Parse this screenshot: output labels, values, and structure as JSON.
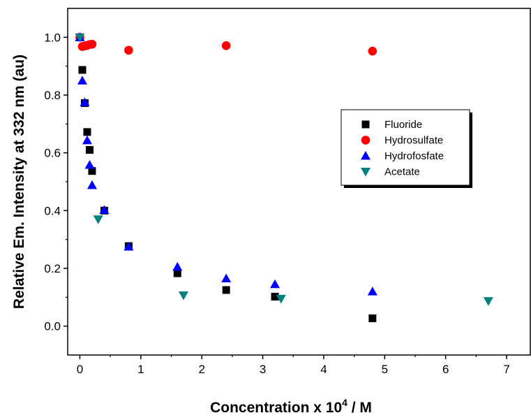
{
  "chart_data": {
    "type": "scatter",
    "xlabel": "Concentration x 10",
    "xlabel_sup": "4",
    "xlabel_suffix": " / M",
    "ylabel": "Relative Em. Intensity at 332 nm (au)",
    "xlim": [
      -0.2,
      7.4
    ],
    "ylim": [
      -0.1,
      1.1
    ],
    "x_ticks": [
      0,
      1,
      2,
      3,
      4,
      5,
      6,
      7
    ],
    "y_ticks": [
      0.0,
      0.2,
      0.4,
      0.6,
      0.8,
      1.0
    ],
    "y_tick_labels": [
      "0.0",
      "0.2",
      "0.4",
      "0.6",
      "0.8",
      "1.0"
    ],
    "grid": false,
    "legend_position": "right",
    "series": [
      {
        "name": "Fluoride",
        "marker": "square",
        "color": "#000000",
        "points": [
          [
            0,
            1.0
          ],
          [
            0.04,
            0.887
          ],
          [
            0.08,
            0.772
          ],
          [
            0.12,
            0.672
          ],
          [
            0.16,
            0.61
          ],
          [
            0.2,
            0.537
          ],
          [
            0.4,
            0.4
          ],
          [
            0.8,
            0.277
          ],
          [
            1.6,
            0.183
          ],
          [
            2.4,
            0.125
          ],
          [
            3.2,
            0.102
          ],
          [
            4.8,
            0.027
          ]
        ]
      },
      {
        "name": "Hydrosulfate",
        "marker": "circle",
        "color": "#ff0000",
        "points": [
          [
            0,
            1.0
          ],
          [
            0.04,
            0.968
          ],
          [
            0.08,
            0.97
          ],
          [
            0.12,
            0.972
          ],
          [
            0.16,
            0.975
          ],
          [
            0.2,
            0.976
          ],
          [
            0.8,
            0.955
          ],
          [
            2.4,
            0.971
          ],
          [
            4.8,
            0.952
          ]
        ]
      },
      {
        "name": "Hydrofosfate",
        "marker": "triangle-up",
        "color": "#0000ff",
        "points": [
          [
            0,
            1.0
          ],
          [
            0.04,
            0.85
          ],
          [
            0.08,
            0.775
          ],
          [
            0.12,
            0.643
          ],
          [
            0.16,
            0.558
          ],
          [
            0.2,
            0.488
          ],
          [
            0.4,
            0.402
          ],
          [
            0.8,
            0.275
          ],
          [
            1.6,
            0.205
          ],
          [
            2.4,
            0.165
          ],
          [
            3.2,
            0.145
          ],
          [
            4.8,
            0.12
          ]
        ]
      },
      {
        "name": "Acetate",
        "marker": "triangle-down",
        "color": "#008080",
        "points": [
          [
            0,
            1.0
          ],
          [
            0.3,
            0.37
          ],
          [
            1.7,
            0.107
          ],
          [
            3.3,
            0.095
          ],
          [
            6.7,
            0.087
          ]
        ]
      }
    ]
  }
}
